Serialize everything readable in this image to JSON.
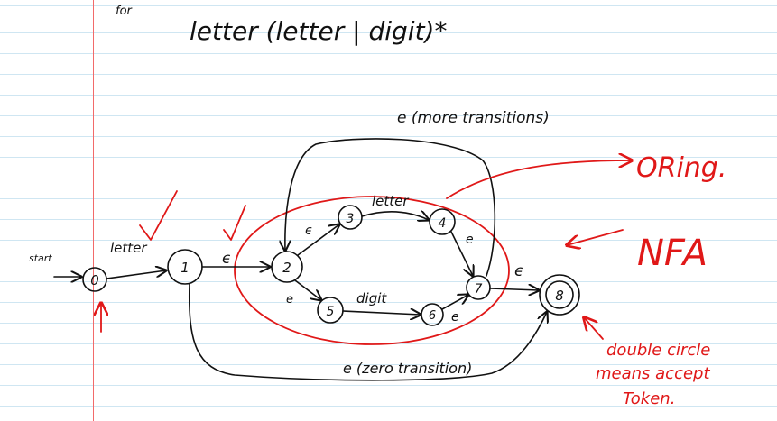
{
  "header": {
    "prefix": "for",
    "regex": "letter (letter | digit)*"
  },
  "states": [
    {
      "id": "0",
      "label": "0"
    },
    {
      "id": "1",
      "label": "1"
    },
    {
      "id": "2",
      "label": "2"
    },
    {
      "id": "3",
      "label": "3"
    },
    {
      "id": "4",
      "label": "4"
    },
    {
      "id": "5",
      "label": "5"
    },
    {
      "id": "6",
      "label": "6"
    },
    {
      "id": "7",
      "label": "7"
    },
    {
      "id": "8",
      "label": "8"
    }
  ],
  "labels": {
    "start": "start",
    "t01": "letter",
    "t12": "ϵ",
    "t23": "ϵ",
    "t34": "letter",
    "t47": "e",
    "t25": "e",
    "t56": "digit",
    "t67": "e",
    "t78": "ϵ",
    "t72": "e (more transitions)",
    "t18": "e (zero transition)"
  },
  "notes": {
    "oring": "ORing.",
    "nfa": "NFA",
    "accept": [
      "double circle",
      "means accept",
      "Token."
    ]
  },
  "colors": {
    "ink": "#111111",
    "annotation": "#e01818",
    "rule": "#cfe6f2",
    "margin": "#f26a6a"
  }
}
